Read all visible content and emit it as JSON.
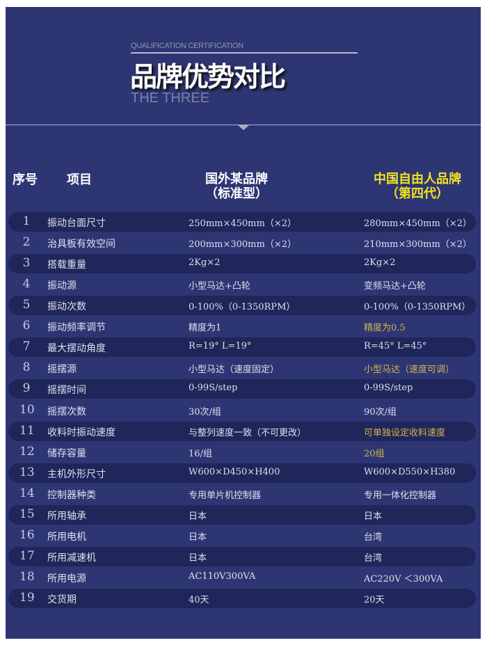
{
  "header": {
    "subtitle_en": "QUALIFICATION CERTIFICATION",
    "title": "品牌优势对比",
    "tagline": "THE THREE"
  },
  "table": {
    "columns": {
      "index": "序号",
      "item": "项目",
      "foreign_line1": "国外某品牌",
      "foreign_line2": "（标准型）",
      "china_line1": "中国自由人品牌",
      "china_line2": "（第四代）"
    },
    "highlight_color": "#d2b449",
    "rows": [
      {
        "n": "1",
        "item": "振动台面尺寸",
        "foreign": "250mm×450mm（×2）",
        "china": "280mm×450mm（×2）",
        "highlight": false
      },
      {
        "n": "2",
        "item": "治具板有效空间",
        "foreign": "200mm×300mm（×2）",
        "china": "210mm×300mm（×2）",
        "highlight": false
      },
      {
        "n": "3",
        "item": "搭载重量",
        "foreign": "2Kg×2",
        "china": "2Kg×2",
        "highlight": false
      },
      {
        "n": "4",
        "item": "振动源",
        "foreign": "小型马达+凸轮",
        "china": "变频马达+凸轮",
        "highlight": false
      },
      {
        "n": "5",
        "item": "振动次数",
        "foreign": "0-100%（0-1350RPM）",
        "china": "0-100%（0-1350RPM）",
        "highlight": false
      },
      {
        "n": "6",
        "item": "振动频率调节",
        "foreign": "精度为1",
        "china": "精度为0.5",
        "highlight": true
      },
      {
        "n": "7",
        "item": "最大摆动角度",
        "foreign": "R=19° L=19°",
        "china": "R=45° L=45°",
        "highlight": false
      },
      {
        "n": "8",
        "item": "摇摆源",
        "foreign": "小型马达（速度固定）",
        "china": "小型马达（速度可调）",
        "highlight": true
      },
      {
        "n": "9",
        "item": "摇摆时间",
        "foreign": "0-99S/step",
        "china": "0-99S/step",
        "highlight": false
      },
      {
        "n": "10",
        "item": "摇摆次数",
        "foreign": "30次/组",
        "china": "90次/组",
        "highlight": false
      },
      {
        "n": "11",
        "item": "收料时振动速度",
        "foreign": "与整列速度一致（不可更改）",
        "china": "可单独设定收料速度",
        "highlight": true
      },
      {
        "n": "12",
        "item": "储存容量",
        "foreign": "16/组",
        "china": "20组",
        "highlight": true
      },
      {
        "n": "13",
        "item": "主机外形尺寸",
        "foreign": "W600×D450×H400",
        "china": "W600×D550×H380",
        "highlight": false
      },
      {
        "n": "14",
        "item": "控制器种类",
        "foreign": "专用单片机控制器",
        "china": "专用一体化控制器",
        "highlight": false
      },
      {
        "n": "15",
        "item": "所用轴承",
        "foreign": "日本",
        "china": "日本",
        "highlight": false
      },
      {
        "n": "16",
        "item": "所用电机",
        "foreign": "日本",
        "china": "台湾",
        "highlight": false
      },
      {
        "n": "17",
        "item": "所用减速机",
        "foreign": "日本",
        "china": "台湾",
        "highlight": false
      },
      {
        "n": "18",
        "item": "所用电源",
        "foreign": "AC110V300VA",
        "china": "AC220V ＜300VA",
        "highlight": false
      },
      {
        "n": "19",
        "item": "交货期",
        "foreign": "40天",
        "china": "20天",
        "highlight": false
      }
    ]
  }
}
